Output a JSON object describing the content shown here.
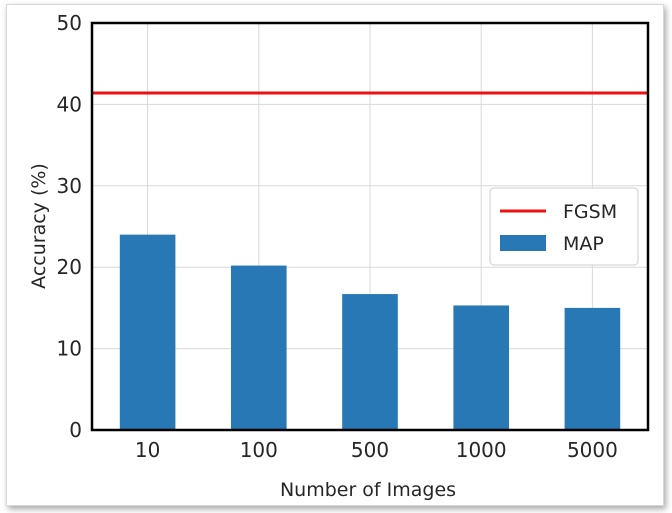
{
  "chart_data": {
    "type": "bar",
    "title": "",
    "xlabel": "Number of Images",
    "ylabel": "Accuracy (%)",
    "categories": [
      "10",
      "100",
      "500",
      "1000",
      "5000"
    ],
    "series": [
      {
        "name": "MAP",
        "type": "bar",
        "values": [
          24,
          20.2,
          16.7,
          15.3,
          15.0
        ],
        "color": "#2878b5"
      },
      {
        "name": "FGSM",
        "type": "hline",
        "value": 41.4,
        "color": "#ee1111"
      }
    ],
    "ylim": [
      0,
      50
    ],
    "yticks": [
      "0",
      "10",
      "20",
      "30",
      "40",
      "50"
    ],
    "grid": true,
    "legend": {
      "placement": "right",
      "entries": [
        "FGSM",
        "MAP"
      ]
    }
  }
}
